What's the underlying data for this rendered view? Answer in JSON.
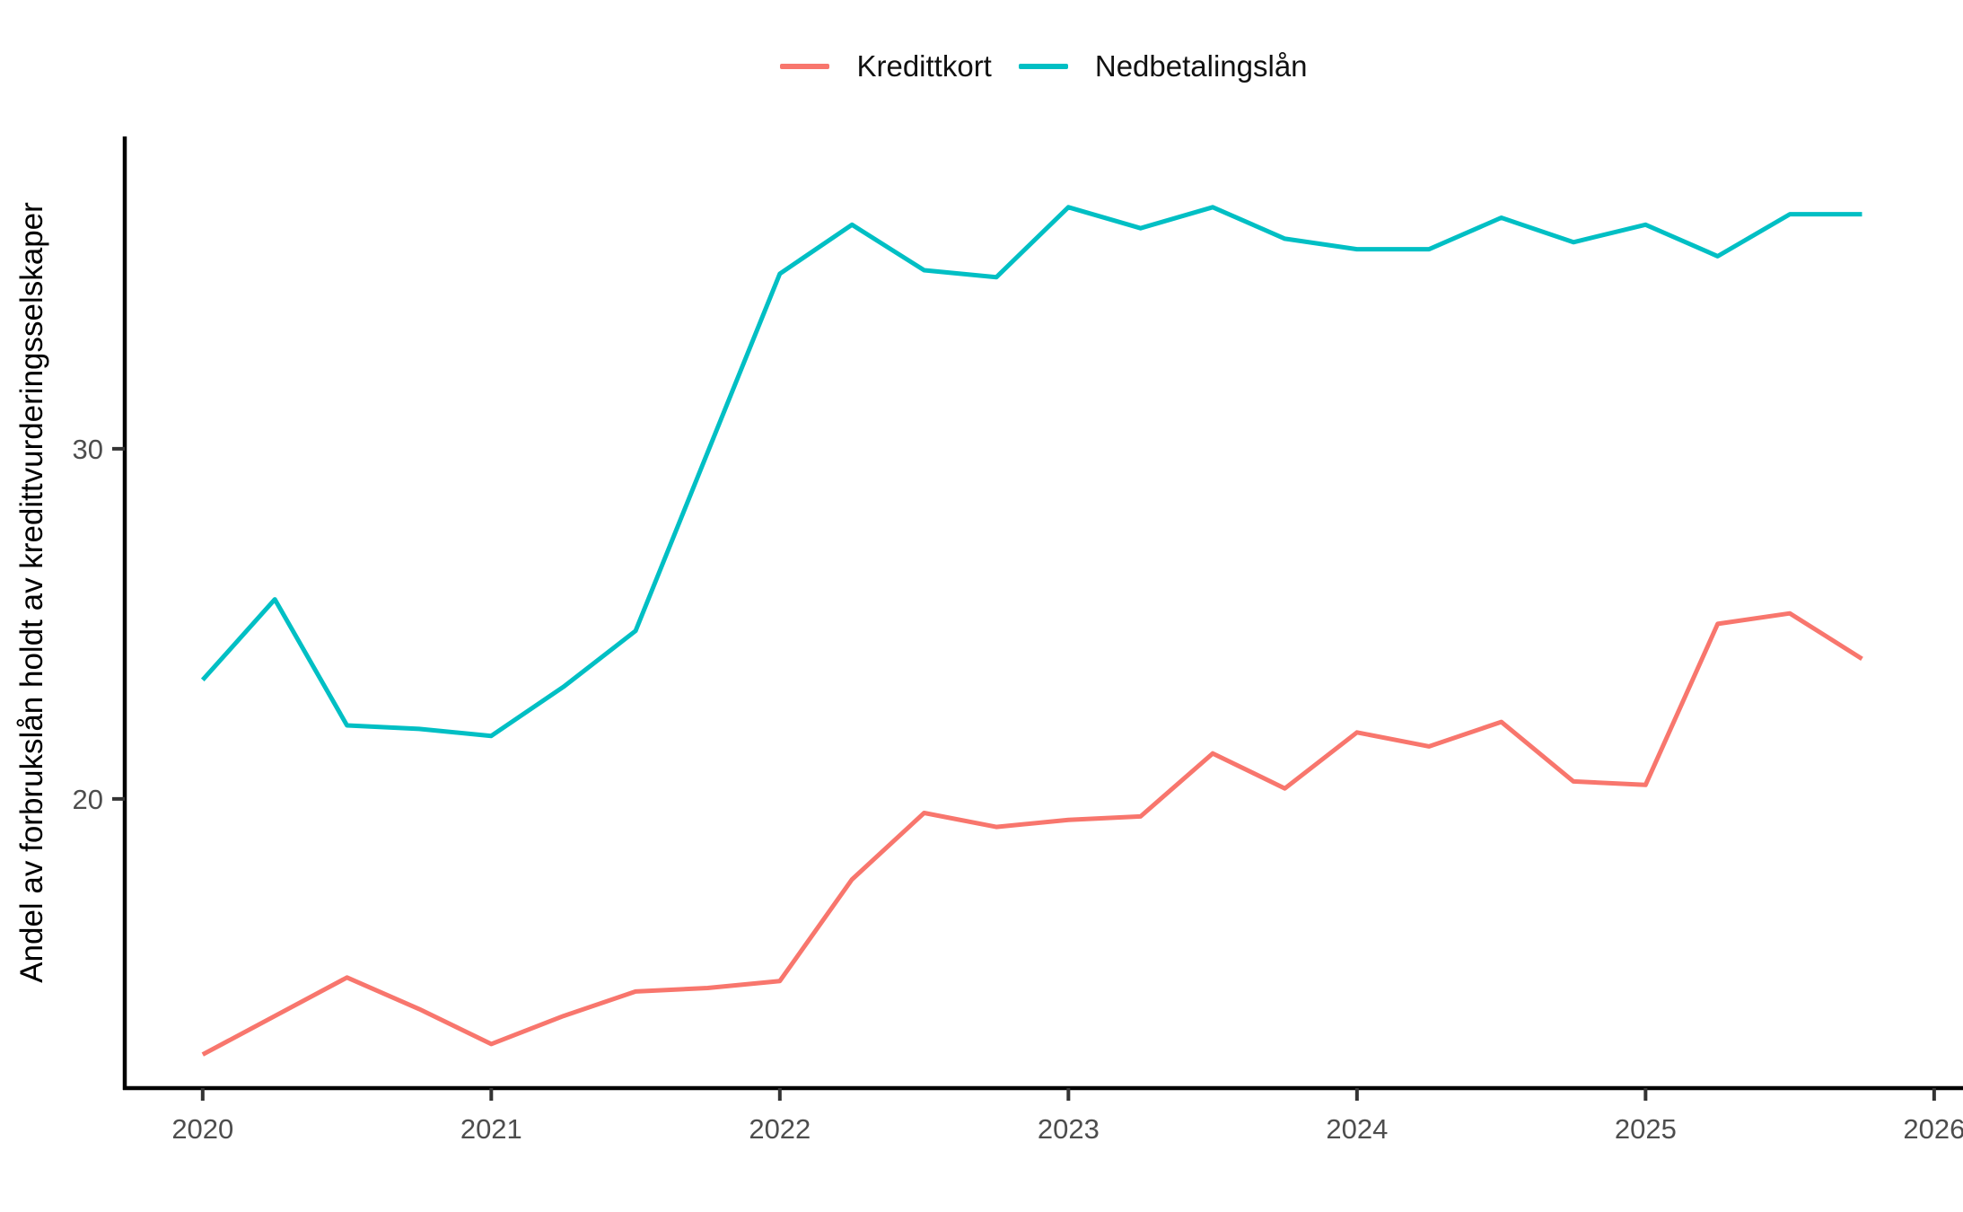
{
  "legend": {
    "items": [
      {
        "label": "Kredittkort",
        "color": "#F8766D"
      },
      {
        "label": "Nedbetalingslån",
        "color": "#00BFC4"
      }
    ]
  },
  "colors": {
    "axis_line": "#000000",
    "tick_mark": "#333333",
    "tick_text": "#4D4D4D",
    "background": "#FFFFFF"
  },
  "chart_data": {
    "type": "line",
    "title": "",
    "xlabel": "",
    "ylabel": "Andel av forbrukslån holdt av kredittvurderingsselskaper",
    "grid": false,
    "legend_position": "top",
    "x": [
      2020.0,
      2020.25,
      2020.5,
      2020.75,
      2021.0,
      2021.25,
      2021.5,
      2021.75,
      2022.0,
      2022.25,
      2022.5,
      2022.75,
      2023.0,
      2023.25,
      2023.5,
      2023.75,
      2024.0,
      2024.25,
      2024.5,
      2024.75,
      2025.0,
      2025.25,
      2025.5,
      2025.75
    ],
    "series": [
      {
        "name": "Kredittkort",
        "color": "#F8766D",
        "values": [
          12.7,
          13.8,
          14.9,
          14.0,
          13.0,
          13.8,
          14.5,
          14.6,
          14.8,
          17.7,
          19.6,
          19.2,
          19.4,
          19.5,
          21.3,
          20.3,
          21.9,
          21.5,
          22.2,
          20.5,
          20.4,
          25.0,
          25.3,
          24.0
        ]
      },
      {
        "name": "Nedbetalingslån",
        "color": "#00BFC4",
        "values": [
          23.4,
          25.7,
          22.1,
          22.0,
          21.8,
          23.2,
          24.8,
          29.9,
          35.0,
          36.4,
          35.1,
          34.9,
          36.9,
          36.3,
          36.9,
          36.0,
          35.7,
          35.7,
          36.6,
          35.9,
          36.4,
          35.5,
          36.7,
          36.7
        ]
      }
    ],
    "x_ticks": [
      2020,
      2021,
      2022,
      2023,
      2024,
      2025,
      2026
    ],
    "x_tick_labels": [
      "2020",
      "2021",
      "2022",
      "2023",
      "2024",
      "2025",
      "2026"
    ],
    "y_ticks": [
      20,
      30
    ],
    "y_tick_labels": [
      "20",
      "30"
    ],
    "x_range": [
      2019.73,
      2026.1
    ],
    "y_range": [
      11.74,
      38.92
    ]
  }
}
